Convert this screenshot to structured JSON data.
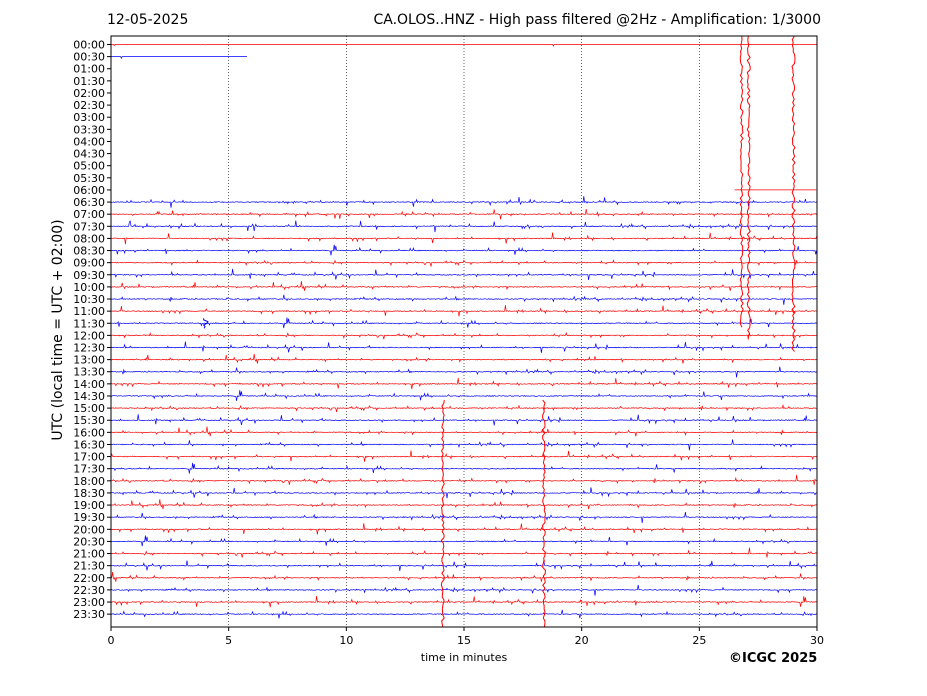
{
  "header": {
    "date": "12-05-2025",
    "title": "CA.OLOS..HNZ - High pass filtered @2Hz - Amplification: 1/3000"
  },
  "footer": {
    "copyright": "©ICGC 2025"
  },
  "chart_data": {
    "type": "line",
    "title": "CA.OLOS..HNZ - High pass filtered @2Hz - Amplification: 1/3000",
    "subtitle": "12-05-2025",
    "xlabel": "time in minutes",
    "ylabel": "UTC (local time = UTC + 02:00)",
    "xlim": [
      0,
      30
    ],
    "x_ticks": [
      "0",
      "5",
      "10",
      "15",
      "20",
      "25",
      "30"
    ],
    "x_tick_values": [
      0,
      5,
      10,
      15,
      20,
      25,
      30
    ],
    "grid": "vertical dotted at each x tick",
    "row_labels": [
      "00:00",
      "00:30",
      "01:00",
      "01:30",
      "02:00",
      "02:30",
      "03:00",
      "03:30",
      "04:00",
      "04:30",
      "05:00",
      "05:30",
      "06:00",
      "06:30",
      "07:00",
      "07:30",
      "08:00",
      "08:30",
      "09:00",
      "09:30",
      "10:00",
      "10:30",
      "11:00",
      "11:30",
      "12:00",
      "12:30",
      "13:00",
      "13:30",
      "14:00",
      "14:30",
      "15:00",
      "15:30",
      "16:00",
      "16:30",
      "17:00",
      "17:30",
      "18:00",
      "18:30",
      "19:00",
      "19:30",
      "20:00",
      "20:30",
      "21:00",
      "21:30",
      "22:00",
      "22:30",
      "23:00",
      "23:30"
    ],
    "series_colors": [
      "#ff0000",
      "#0000ff"
    ],
    "row_data_extent": [
      [
        0,
        30
      ],
      [
        0,
        5.8
      ],
      [
        0,
        0
      ],
      [
        0,
        0
      ],
      [
        0,
        0
      ],
      [
        0,
        0
      ],
      [
        0,
        0
      ],
      [
        0,
        0
      ],
      [
        0,
        0
      ],
      [
        0,
        0
      ],
      [
        0,
        0
      ],
      [
        0,
        0
      ],
      [
        26.5,
        30
      ],
      [
        0,
        30
      ],
      [
        0,
        30
      ],
      [
        0,
        30
      ],
      [
        0,
        30
      ],
      [
        0,
        30
      ],
      [
        0,
        30
      ],
      [
        0,
        30
      ],
      [
        0,
        30
      ],
      [
        0,
        30
      ],
      [
        0,
        30
      ],
      [
        0,
        30
      ],
      [
        0,
        30
      ],
      [
        0,
        30
      ],
      [
        0,
        30
      ],
      [
        0,
        30
      ],
      [
        0,
        30
      ],
      [
        0,
        30
      ],
      [
        0,
        30
      ],
      [
        0,
        30
      ],
      [
        0,
        30
      ],
      [
        0,
        30
      ],
      [
        0,
        30
      ],
      [
        0,
        30
      ],
      [
        0,
        30
      ],
      [
        0,
        30
      ],
      [
        0,
        30
      ],
      [
        0,
        30
      ],
      [
        0,
        30
      ],
      [
        0,
        30
      ],
      [
        0,
        30
      ],
      [
        0,
        30
      ],
      [
        0,
        30
      ],
      [
        0,
        30
      ],
      [
        0,
        30
      ],
      [
        0,
        30
      ]
    ],
    "activity": {
      "quiet_rows": [
        "01:00",
        "01:30",
        "02:00",
        "02:30",
        "03:00",
        "03:30",
        "04:00",
        "04:30",
        "05:00",
        "05:30"
      ],
      "events": [
        {
          "row": "00:00",
          "minute": 26.8,
          "amplitude": "large, spans to 11:30"
        },
        {
          "row": "00:00",
          "minute": 27.1,
          "amplitude": "large, spans to 12:00"
        },
        {
          "row": "00:00",
          "minute": 29.0,
          "amplitude": "large, spans to 12:30"
        },
        {
          "row": "11:30",
          "minute": 4.0,
          "amplitude": "medium"
        },
        {
          "row": "15:00",
          "minute": 14.1,
          "amplitude": "large, spans to 23:30"
        },
        {
          "row": "15:00",
          "minute": 18.4,
          "amplitude": "large, spans to 23:30"
        }
      ]
    }
  }
}
